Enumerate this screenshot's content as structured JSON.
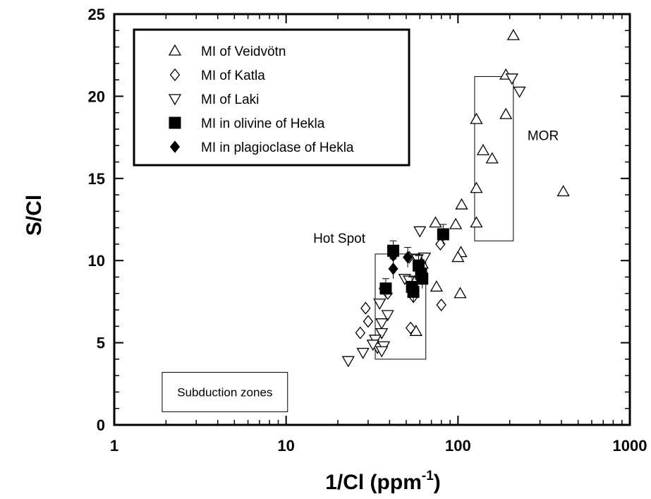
{
  "chart_data": {
    "type": "scatter",
    "xlabel": "1/Cl (ppm",
    "xlabel_sup": "-1",
    "xlabel_suffix": ")",
    "ylabel": "S/Cl",
    "xscale": "log",
    "xlim": [
      1,
      1000
    ],
    "ylim": [
      0,
      25
    ],
    "x_ticks": [
      1,
      10,
      100,
      1000
    ],
    "x_tick_labels": [
      "1",
      "10",
      "100",
      "1000"
    ],
    "y_ticks": [
      0,
      5,
      10,
      15,
      20,
      25
    ],
    "y_tick_labels": [
      "0",
      "5",
      "10",
      "15",
      "20",
      "25"
    ],
    "legend_position": "top-left",
    "series": [
      {
        "name": "MI of Veidvötn",
        "marker": "triangle-up-open",
        "points": [
          [
            210,
            23.7
          ],
          [
            190,
            21.3
          ],
          [
            190,
            18.9
          ],
          [
            128,
            18.6
          ],
          [
            140,
            16.7
          ],
          [
            158,
            16.2
          ],
          [
            128,
            14.4
          ],
          [
            410,
            14.2
          ],
          [
            105,
            13.4
          ],
          [
            74,
            12.3
          ],
          [
            128,
            12.3
          ],
          [
            97,
            12.2
          ],
          [
            104,
            10.5
          ],
          [
            100,
            10.2
          ],
          [
            75,
            8.4
          ],
          [
            103,
            8.0
          ],
          [
            59,
            10.1
          ],
          [
            62,
            9.8
          ],
          [
            57,
            5.7
          ]
        ]
      },
      {
        "name": "MI of Katla",
        "marker": "diamond-open",
        "points": [
          [
            29,
            7.1
          ],
          [
            30,
            6.3
          ],
          [
            27,
            5.6
          ],
          [
            53,
            5.9
          ],
          [
            80,
            7.3
          ],
          [
            79,
            11.0
          ],
          [
            52,
            10.2
          ],
          [
            55,
            7.8
          ],
          [
            37,
            8.3
          ],
          [
            39,
            8.0
          ]
        ]
      },
      {
        "name": "MI of Laki",
        "marker": "triangle-down-open",
        "points": [
          [
            206,
            21.1
          ],
          [
            228,
            20.3
          ],
          [
            60,
            11.8
          ],
          [
            64,
            10.2
          ],
          [
            58,
            10.1
          ],
          [
            49,
            8.9
          ],
          [
            35,
            7.4
          ],
          [
            39,
            6.7
          ],
          [
            36,
            6.2
          ],
          [
            36,
            5.6
          ],
          [
            33,
            5.2
          ],
          [
            34,
            4.7
          ],
          [
            37,
            4.8
          ],
          [
            28,
            4.4
          ],
          [
            32,
            4.9
          ],
          [
            23,
            3.9
          ],
          [
            36,
            4.5
          ],
          [
            52,
            8.8
          ]
        ]
      },
      {
        "name": "MI in olivine of Hekla",
        "marker": "square-filled",
        "points": [
          [
            82,
            11.6
          ],
          [
            42,
            10.6
          ],
          [
            59,
            9.7
          ],
          [
            61,
            9.2
          ],
          [
            62,
            8.9
          ],
          [
            54,
            8.4
          ],
          [
            55,
            8.1
          ],
          [
            38,
            8.3
          ]
        ]
      },
      {
        "name": "MI in plagioclase of Hekla",
        "marker": "diamond-filled",
        "points": [
          [
            51,
            10.2
          ],
          [
            42,
            9.5
          ],
          [
            42,
            10.3
          ]
        ]
      }
    ],
    "regions": [
      {
        "label": "MOR",
        "x": [
          125,
          210
        ],
        "y": [
          11.2,
          21.2
        ]
      },
      {
        "label": "Hot Spot",
        "x": [
          33,
          65
        ],
        "y": [
          4.0,
          10.4
        ]
      },
      {
        "label": "Subduction zones",
        "x": [
          1.9,
          10.2
        ],
        "y": [
          0.8,
          3.2
        ]
      }
    ]
  }
}
